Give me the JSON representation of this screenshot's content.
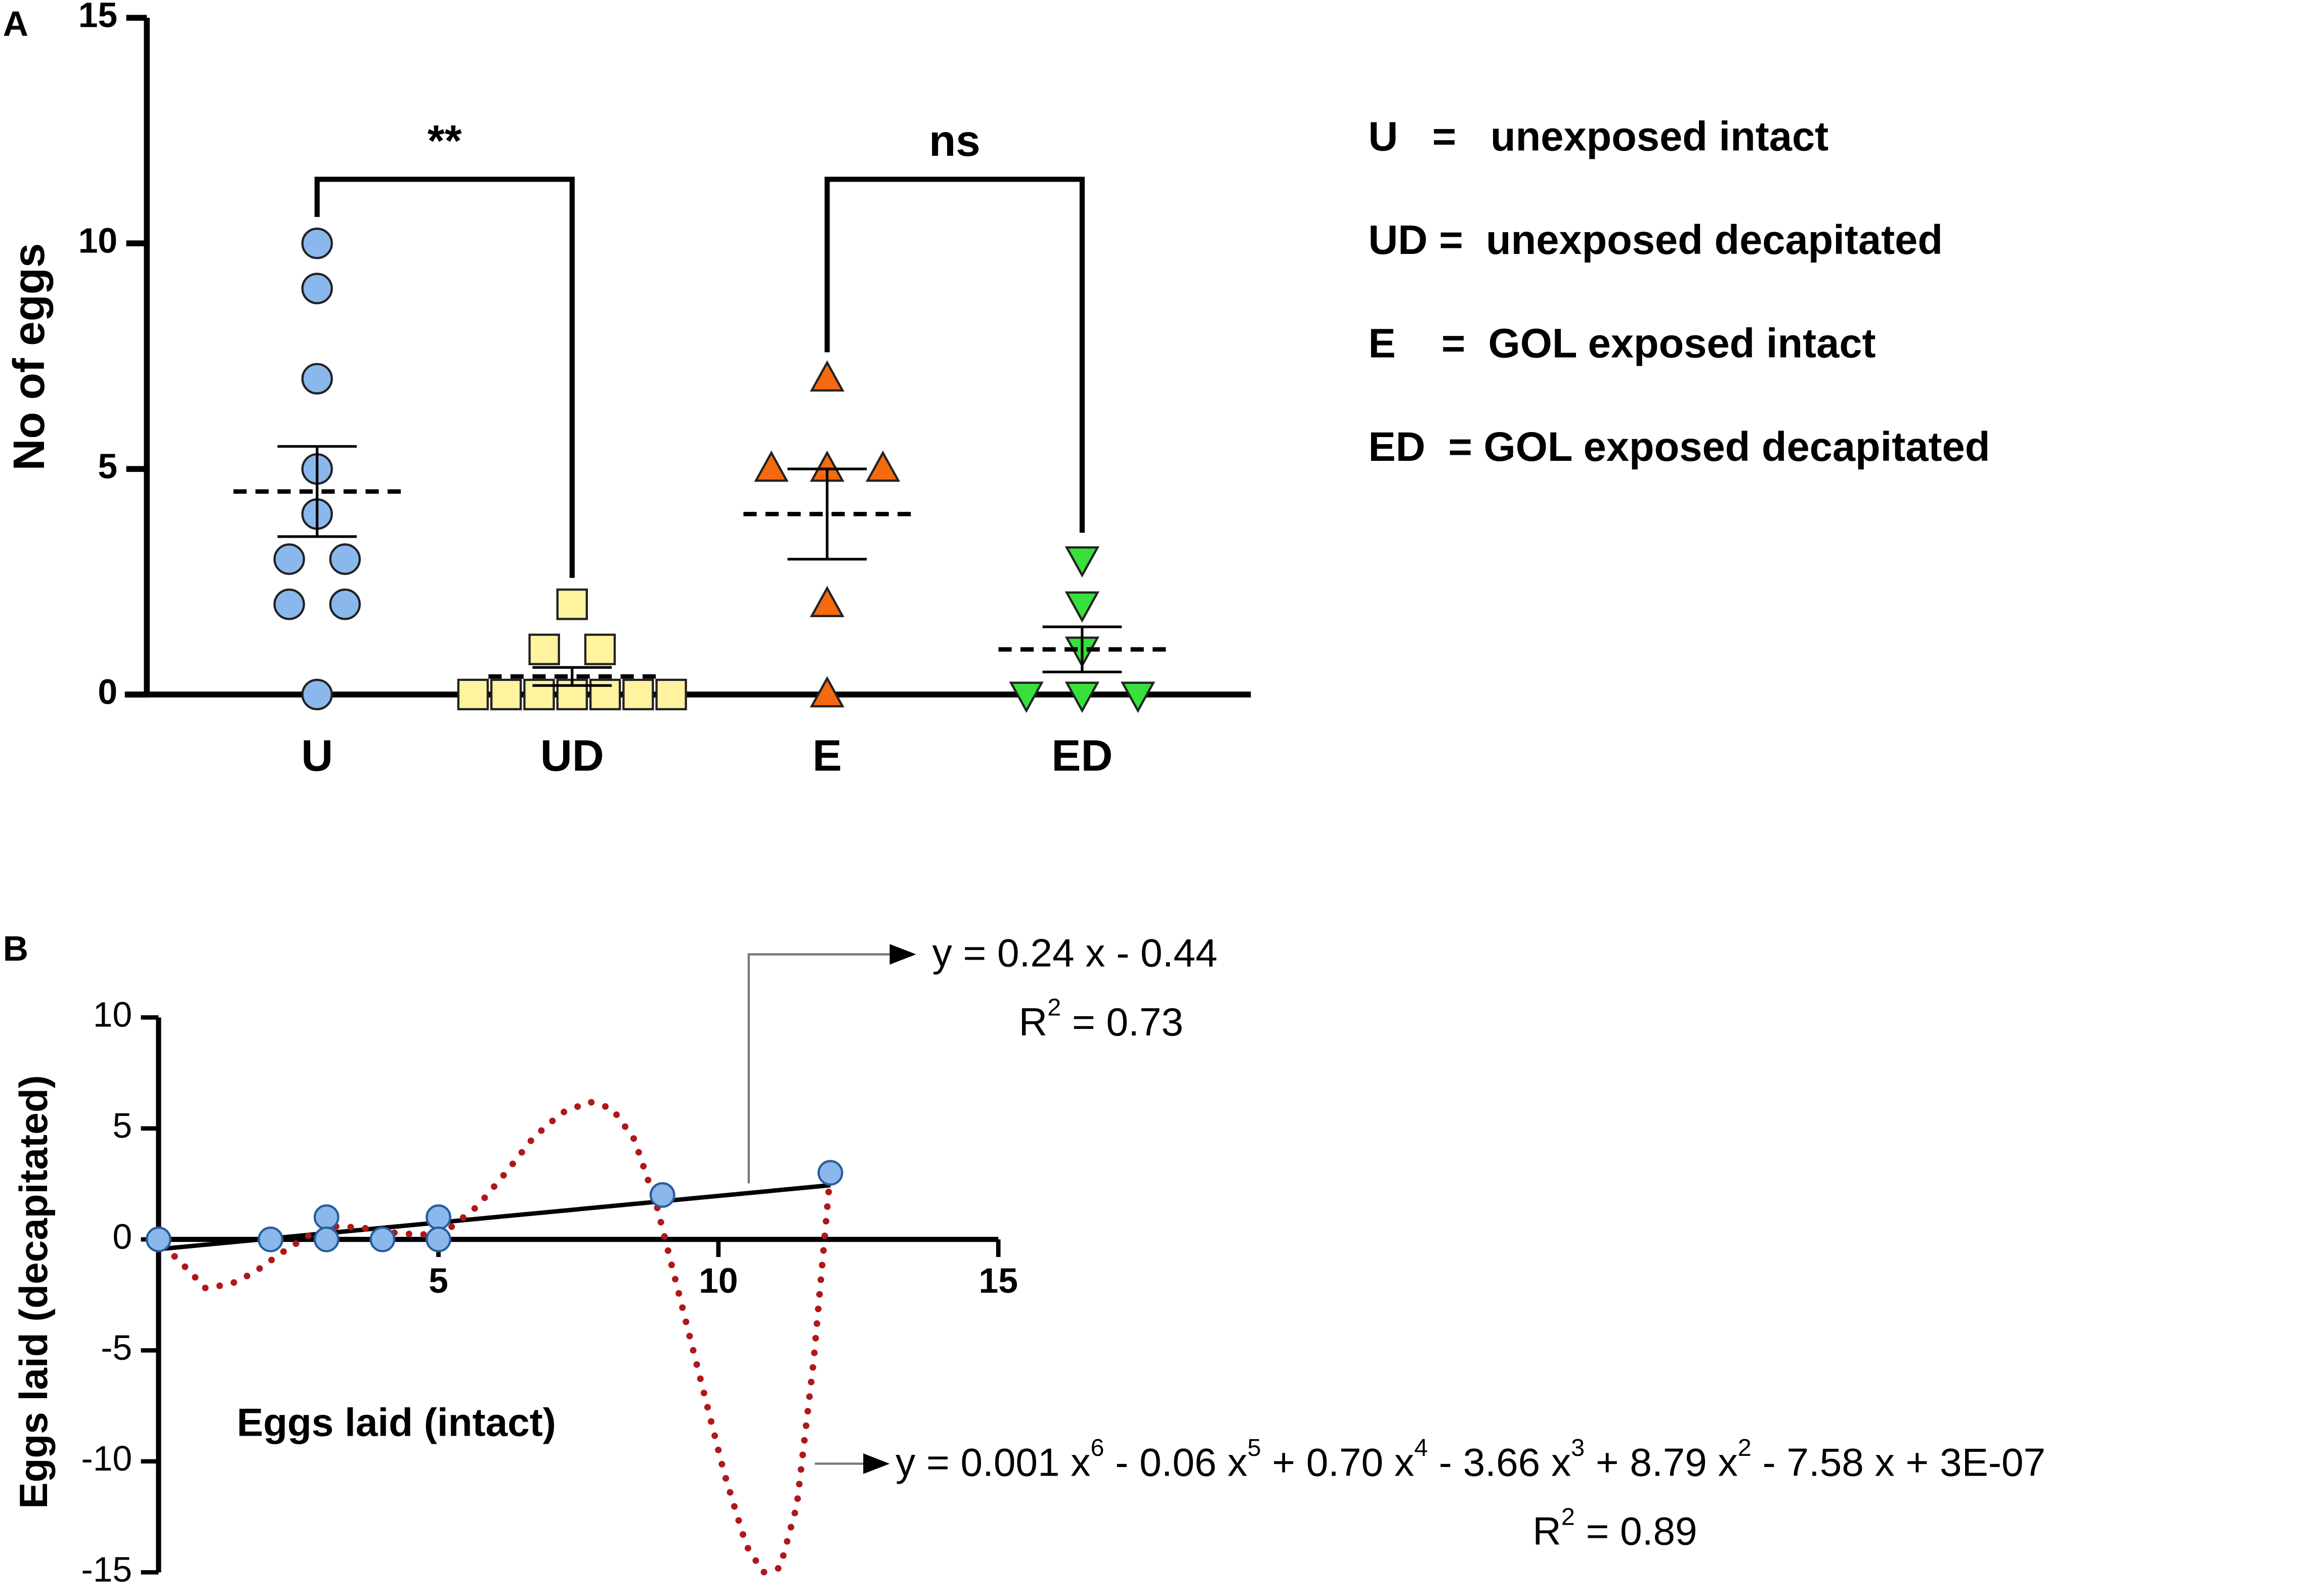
{
  "chart_data": [
    {
      "type": "strip",
      "panel_label": "A",
      "y_label": "No of eggs",
      "categories": [
        "U",
        "UD",
        "E",
        "ED"
      ],
      "points": [
        [
          10,
          9,
          7,
          5,
          4,
          3,
          3,
          2,
          2,
          0
        ],
        [
          2,
          1,
          1,
          0,
          0,
          0,
          0,
          0,
          0,
          0
        ],
        [
          7,
          5,
          5,
          5,
          2,
          0
        ],
        [
          3,
          2,
          1,
          0,
          0,
          0
        ]
      ],
      "colors": [
        "#8ab8ec",
        "#fff3a0",
        "#f36a10",
        "#38e03c"
      ],
      "markers": [
        "circle",
        "square",
        "triangle-up",
        "triangle-down"
      ],
      "means": [
        4.5,
        0.4,
        4,
        1
      ],
      "sems": [
        1,
        0.2,
        1,
        0.5
      ],
      "comparisons": [
        "**",
        "ns"
      ],
      "notes": [
        "U   =   unexposed intact",
        "UD =  unexposed decapitated",
        "E    =  GOL exposed intact",
        "ED  = GOL exposed decapitated"
      ],
      "ylim": [
        0,
        15
      ],
      "yticks": [
        0,
        5,
        10,
        15
      ]
    },
    {
      "type": "scatter",
      "panel_label": "B",
      "x_label": "Eggs laid (intact)",
      "y_label": "Eggs laid (decapitated)",
      "x": [
        0,
        2,
        3,
        3,
        4,
        5,
        5,
        9,
        12
      ],
      "y": [
        0,
        0,
        1,
        0,
        0,
        1,
        0,
        2,
        3
      ],
      "color": "#8ab8ec",
      "fits": [
        {
          "kind": "linear",
          "color": "#000000",
          "x": [
            0,
            12
          ],
          "y": [
            -0.44,
            2.44
          ],
          "equation": [
            "y = 0.24 x - 0.44"
          ],
          "r2": [
            "R",
            "2",
            " = 0.73"
          ]
        },
        {
          "kind": "polynomial",
          "color": "#b01818",
          "x": [
            0.1,
            0.5,
            0.84,
            1.3,
            1.7,
            2.2,
            2.7,
            3.2,
            3.7,
            4.2,
            4.7,
            5.2,
            5.7,
            6.2,
            6.7,
            7.2,
            7.7,
            8.1,
            8.5,
            8.9,
            9.3,
            9.7,
            10.1,
            10.5,
            10.8,
            11.1,
            11.4,
            11.7,
            12
          ],
          "y": [
            -0.3,
            -1.3,
            -2.2,
            -2.0,
            -1.5,
            -0.6,
            0.2,
            0.6,
            0.5,
            0.3,
            0.2,
            0.5,
            1.5,
            3.0,
            4.6,
            5.7,
            6.2,
            5.9,
            4.5,
            1.5,
            -2.5,
            -6.5,
            -10.5,
            -13.8,
            -15.0,
            -14.8,
            -12,
            -5.5,
            3
          ],
          "equation": [
            "y = 0.001 x",
            "6",
            " - 0.06 x",
            "5",
            " + 0.70 x",
            "4",
            " - 3.66 x",
            "3",
            " + 8.79 x",
            "2",
            " - 7.58 x + 3E-07"
          ],
          "r2": [
            "R",
            "2",
            " = 0.89"
          ]
        }
      ],
      "xlim": [
        0,
        15
      ],
      "xticks": [
        5,
        10,
        15
      ],
      "ylim": [
        -15,
        10
      ],
      "yticks": [
        -15,
        -10,
        -5,
        0,
        5,
        10
      ]
    }
  ]
}
